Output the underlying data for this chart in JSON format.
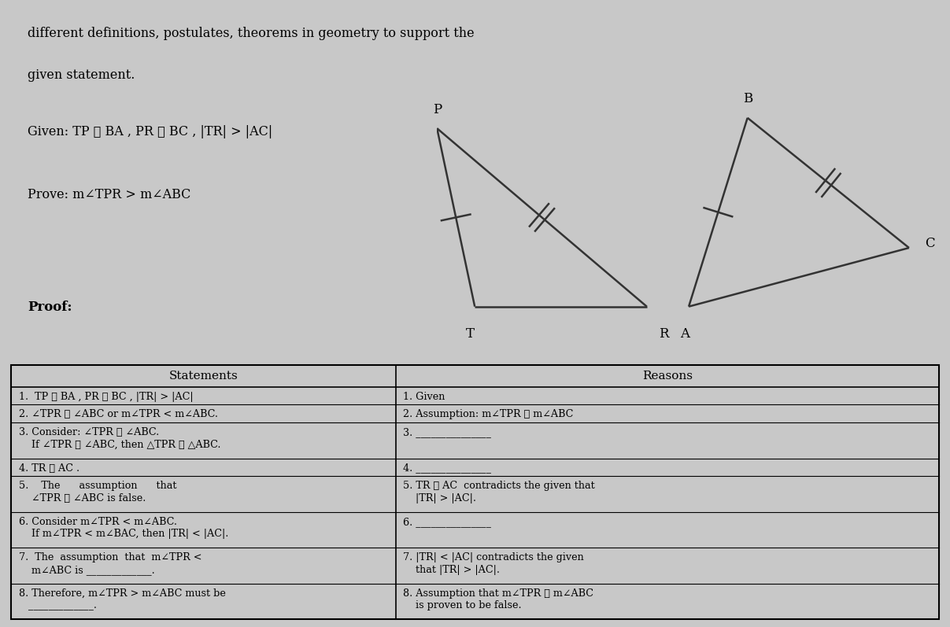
{
  "bg_color": "#c8c8c8",
  "content_bg": "#d8d8d8",
  "table_bg": "#f0f0f0",
  "header_text_line1": "different definitions, postulates, theorems in geometry to support the",
  "header_text_line2": "given statement.",
  "given_text": "Given: TP ≅ BA , PR ≅ BC , |TR| > |AC|",
  "prove_text": "Prove: m∠TPR > m∠ABC",
  "proof_label": "Proof:",
  "table_header_left": "Statements",
  "table_header_right": "Reasons",
  "rows": [
    {
      "left": [
        "1.  TP ≅ BA , PR ≅ BC , |TR| > |AC|"
      ],
      "right": [
        "1. Given"
      ]
    },
    {
      "left": [
        "2. ∠TPR ≅ ∠ABC or m∠TPR < m∠ABC."
      ],
      "right": [
        "2. Assumption: m∠TPR ≇ m∠ABC"
      ]
    },
    {
      "left": [
        "3. Consider: ∠TPR ≅ ∠ABC.",
        "    If ∠TPR ≅ ∠ABC, then △TPR ≅ △ABC."
      ],
      "right": [
        "3. _______________"
      ]
    },
    {
      "left": [
        "4. TR ≅ AC ."
      ],
      "right": [
        "4. _______________"
      ]
    },
    {
      "left": [
        "5.    The      assumption      that",
        "    ∠TPR ≅ ∠ABC is false."
      ],
      "right": [
        "5. TR ≅ AC  contradicts the given that",
        "    |TR| > |AC|."
      ]
    },
    {
      "left": [
        "6. Consider m∠TPR < m∠ABC.",
        "    If m∠TPR < m∠BAC, then |TR| < |AC|."
      ],
      "right": [
        "6. _______________"
      ]
    },
    {
      "left": [
        "7.  The  assumption  that  m∠TPR <",
        "    m∠ABC is _____________."
      ],
      "right": [
        "7. |TR| < |AC| contradicts the given",
        "    that |TR| > |AC|."
      ]
    },
    {
      "left": [
        "8. Therefore, m∠TPR > m∠ABC must be",
        "   _____________."
      ],
      "right": [
        "8. Assumption that m∠TPR ≇ m∠ABC",
        "    is proven to be false."
      ]
    }
  ],
  "tri1": {
    "T": [
      0.18,
      0.0
    ],
    "P": [
      0.0,
      0.85
    ],
    "R": [
      1.0,
      0.0
    ],
    "single_tick": [
      "TP"
    ],
    "double_tick": [
      "PR"
    ]
  },
  "tri2": {
    "A": [
      0.0,
      0.0
    ],
    "B": [
      0.28,
      0.9
    ],
    "C": [
      1.05,
      0.28
    ],
    "single_tick": [
      "AB"
    ],
    "double_tick": [
      "BC"
    ]
  }
}
